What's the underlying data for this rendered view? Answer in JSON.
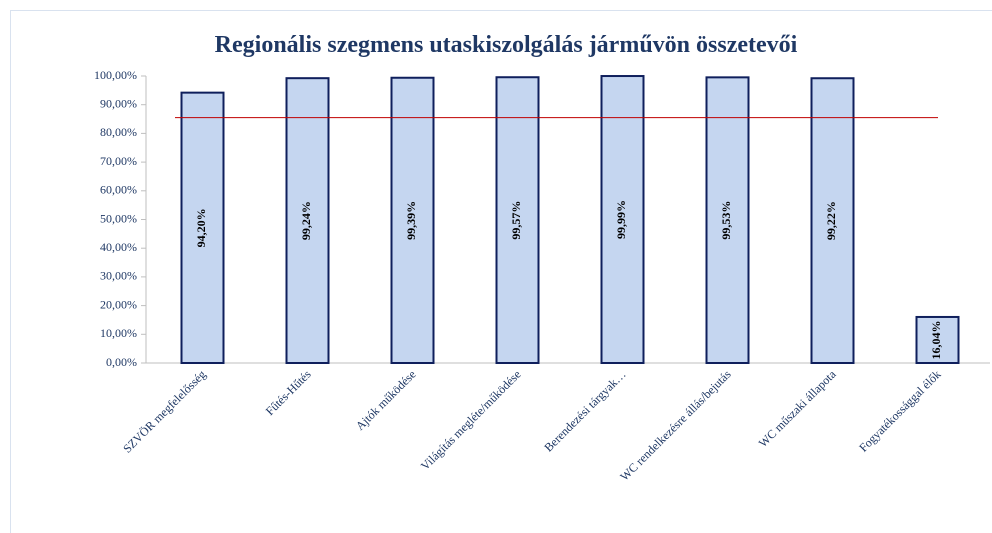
{
  "chart_data": {
    "type": "bar",
    "title": "Regionális szegmens utaskiszolgálás járművön összetevői",
    "categories": [
      "SZVÖR megfelelősség",
      "Fűtés-Hűtés",
      "Ajtók működése",
      "Világítás megléte/működése",
      "Berendezési tárgyak…",
      "WC rendelkezésre állás/bejutás",
      "WC műszaki állapota",
      "Fogyatékossággal élők"
    ],
    "values": [
      94.2,
      99.24,
      99.39,
      99.57,
      99.99,
      99.53,
      99.22,
      16.04
    ],
    "value_labels": [
      "94,20%",
      "99,24%",
      "99,39%",
      "99,57%",
      "99,99%",
      "99,53%",
      "99,22%",
      "16,04%"
    ],
    "color": "#c5d6f0",
    "edge_color": "#0f1f5c",
    "reference_line": {
      "value": 85.5,
      "color": "#c00000"
    },
    "ylim": [
      0,
      100
    ],
    "yticks": [
      {
        "value": 0,
        "label": "0,00%"
      },
      {
        "value": 10,
        "label": "10,00%"
      },
      {
        "value": 20,
        "label": "20,00%"
      },
      {
        "value": 30,
        "label": "30,00%"
      },
      {
        "value": 40,
        "label": "40,00%"
      },
      {
        "value": 50,
        "label": "50,00%"
      },
      {
        "value": 60,
        "label": "60,00%"
      },
      {
        "value": 70,
        "label": "70,00%"
      },
      {
        "value": 80,
        "label": "80,00%"
      },
      {
        "value": 90,
        "label": "90,00%"
      },
      {
        "value": 100,
        "label": "100,00%"
      }
    ]
  }
}
